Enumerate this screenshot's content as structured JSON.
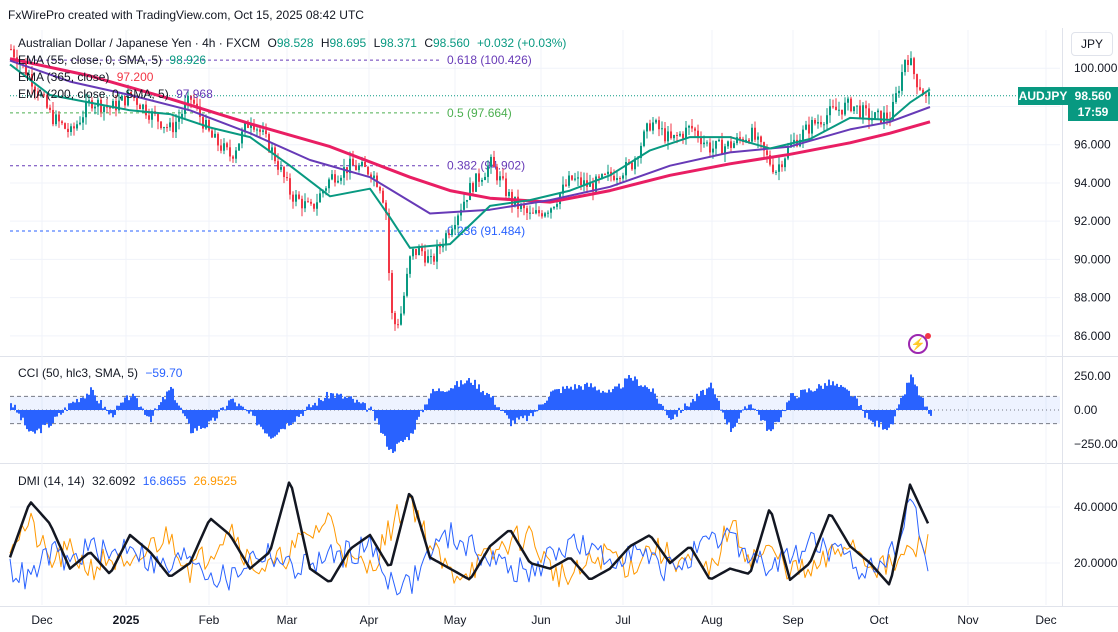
{
  "attribution": "FxWirePro created with TradingView.com, Oct 15, 2025 08:42 UTC",
  "currency": "JPY",
  "symbol_tag": "AUDJPY",
  "last_price": "98.560",
  "countdown": "17:59",
  "colors": {
    "up": "#089981",
    "down": "#f23645",
    "ema55": "#089981",
    "ema365": "#e91e63",
    "ema200": "#673ab7",
    "cci": "#2962ff",
    "adx": "#131722",
    "di_plus": "#2962ff",
    "di_minus": "#ff9800",
    "fib": "#673ab7"
  },
  "legend": {
    "title": "Australian Dollar / Japanese Yen · 4h · FXCM",
    "o_label": "O",
    "o": "98.528",
    "h_label": "H",
    "h": "98.695",
    "l_label": "L",
    "l": "98.371",
    "c_label": "C",
    "c": "98.560",
    "change": "+0.032 (+0.03%)",
    "ema55_label": "EMA (55, close, 0, SMA, 5)",
    "ema55_value": "98.926",
    "ema365_label": "EMA (365, close)",
    "ema365_value": "97.200",
    "ema200_label": "EMA (200, close, 0, SMA, 5)",
    "ema200_value": "97.968",
    "cci_label": "CCI (50, hlc3, SMA, 5)",
    "cci_value": "−59.70",
    "dmi_label": "DMI (14, 14)",
    "dmi_adx": "32.6092",
    "dmi_plus": "16.8655",
    "dmi_minus": "26.9525"
  },
  "chart_data": [
    {
      "type": "line",
      "panel": "price",
      "title": "Australian Dollar / Japanese Yen · 4h · FXCM",
      "x_axis_labels": [
        "Dec",
        "2025",
        "Feb",
        "Mar",
        "Apr",
        "May",
        "Jun",
        "Jul",
        "Aug",
        "Sep",
        "Oct",
        "Nov",
        "Dec"
      ],
      "y_ticks": [
        "100.000",
        "98.000",
        "96.000",
        "94.000",
        "92.000",
        "90.000",
        "88.000",
        "86.000"
      ],
      "ylim": [
        85.0,
        102.0
      ],
      "fib_levels": [
        {
          "label": "0.618 (100.426)",
          "value": 100.426
        },
        {
          "label": "0.5 (97.664)",
          "value": 97.664
        },
        {
          "label": "0.382 (94.902)",
          "value": 94.902
        },
        {
          "label": "0.236 (91.484)",
          "value": 91.484
        }
      ],
      "price_x": [
        0,
        20,
        40,
        60,
        80,
        100,
        120,
        140,
        160,
        180,
        200,
        220,
        240,
        260,
        280,
        300,
        320,
        340,
        360,
        370,
        375,
        380,
        385,
        390,
        395,
        400,
        410,
        420,
        440,
        460,
        480,
        500,
        520,
        540,
        560,
        580,
        600,
        620,
        640,
        660,
        680,
        700,
        720,
        740,
        760,
        765,
        780,
        800,
        820,
        840,
        860,
        880,
        890,
        895,
        900,
        905,
        910,
        915,
        920
      ],
      "price_close": [
        101.0,
        99.5,
        97.5,
        96.6,
        98.3,
        97.9,
        98.6,
        97.6,
        96.8,
        98.4,
        96.4,
        95.4,
        97.4,
        95.8,
        93.4,
        92.6,
        94.3,
        94.9,
        94.6,
        93.8,
        92.5,
        87.2,
        86.5,
        87.2,
        88.7,
        90.3,
        90.5,
        89.8,
        91.8,
        93.8,
        95.0,
        93.1,
        92.2,
        92.8,
        94.2,
        93.8,
        94.4,
        94.9,
        97.2,
        96.2,
        96.9,
        95.8,
        96.0,
        96.6,
        95.0,
        94.7,
        96.0,
        97.0,
        97.7,
        98.1,
        97.4,
        97.5,
        99.5,
        100.8,
        100.2,
        99.4,
        99.0,
        98.4,
        98.56
      ],
      "ema55_x": [
        0,
        40,
        80,
        120,
        160,
        200,
        240,
        280,
        320,
        360,
        380,
        400,
        440,
        480,
        520,
        560,
        600,
        640,
        680,
        720,
        760,
        800,
        840,
        880,
        900,
        920
      ],
      "ema55": [
        100.2,
        98.6,
        98.2,
        97.8,
        97.6,
        96.9,
        96.4,
        94.9,
        93.3,
        93.7,
        92.2,
        90.6,
        90.8,
        92.8,
        93.1,
        93.6,
        94.4,
        95.7,
        96.4,
        96.4,
        95.8,
        96.3,
        97.4,
        97.3,
        98.2,
        98.9
      ],
      "ema200_x": [
        0,
        60,
        120,
        180,
        240,
        300,
        360,
        420,
        480,
        540,
        600,
        660,
        720,
        780,
        840,
        880,
        920
      ],
      "ema200": [
        100.4,
        99.3,
        98.6,
        97.8,
        96.6,
        95.2,
        94.3,
        92.4,
        92.6,
        93.1,
        93.8,
        94.9,
        95.6,
        95.9,
        96.8,
        97.2,
        97.97
      ],
      "ema365_x": [
        0,
        80,
        160,
        240,
        320,
        400,
        440,
        480,
        540,
        600,
        660,
        720,
        780,
        840,
        880,
        920
      ],
      "ema365": [
        100.5,
        99.6,
        98.4,
        97.1,
        95.9,
        94.3,
        93.6,
        93.2,
        93.0,
        93.6,
        94.4,
        95.0,
        95.5,
        96.1,
        96.6,
        97.2
      ]
    },
    {
      "type": "bar",
      "panel": "cci",
      "title": "CCI (50, hlc3, SMA, 5)",
      "y_ticks": [
        "250.00",
        "0.00",
        "−250.00"
      ],
      "ylim": [
        -380,
        380
      ],
      "bands": [
        100,
        -100
      ],
      "x": [
        0,
        20,
        40,
        60,
        80,
        100,
        120,
        140,
        160,
        180,
        200,
        220,
        240,
        260,
        280,
        300,
        320,
        340,
        360,
        380,
        400,
        420,
        440,
        460,
        480,
        500,
        520,
        540,
        560,
        580,
        600,
        620,
        640,
        660,
        680,
        700,
        720,
        740,
        760,
        780,
        800,
        820,
        840,
        860,
        880,
        900,
        920
      ],
      "values": [
        60,
        -180,
        -100,
        50,
        140,
        -40,
        110,
        -60,
        160,
        -150,
        -100,
        80,
        -40,
        -190,
        -80,
        30,
        120,
        80,
        0,
        -300,
        -180,
        130,
        170,
        220,
        100,
        -90,
        -50,
        130,
        170,
        180,
        120,
        240,
        150,
        -60,
        60,
        170,
        -140,
        60,
        -170,
        100,
        150,
        200,
        120,
        -90,
        -130,
        250,
        -60
      ]
    },
    {
      "type": "line",
      "panel": "dmi",
      "title": "DMI (14, 14)",
      "y_ticks": [
        "40.0000",
        "20.0000"
      ],
      "ylim": [
        5,
        55
      ],
      "x": [
        0,
        20,
        40,
        60,
        80,
        100,
        120,
        140,
        160,
        180,
        200,
        220,
        240,
        260,
        280,
        300,
        320,
        340,
        360,
        380,
        400,
        420,
        440,
        460,
        480,
        500,
        520,
        540,
        560,
        580,
        600,
        620,
        640,
        660,
        680,
        700,
        720,
        740,
        760,
        780,
        800,
        820,
        840,
        860,
        880,
        900,
        920
      ],
      "series": [
        {
          "name": "ADX",
          "values": [
            22,
            42,
            34,
            18,
            24,
            16,
            30,
            24,
            15,
            20,
            36,
            30,
            18,
            24,
            50,
            18,
            13,
            25,
            30,
            18,
            46,
            22,
            18,
            14,
            26,
            32,
            20,
            18,
            22,
            14,
            18,
            26,
            30,
            20,
            26,
            14,
            18,
            16,
            40,
            14,
            20,
            38,
            26,
            20,
            12,
            48,
            32.6
          ]
        },
        {
          "name": "+DI",
          "values": [
            18,
            14,
            24,
            20,
            26,
            22,
            28,
            20,
            18,
            24,
            16,
            14,
            22,
            24,
            18,
            20,
            22,
            24,
            26,
            14,
            12,
            24,
            30,
            26,
            22,
            18,
            16,
            22,
            28,
            24,
            20,
            26,
            20,
            18,
            22,
            26,
            30,
            22,
            18,
            22,
            28,
            24,
            20,
            18,
            22,
            44,
            16.9
          ]
        },
        {
          "name": "−DI",
          "values": [
            28,
            34,
            20,
            24,
            18,
            22,
            16,
            26,
            30,
            18,
            24,
            34,
            20,
            18,
            24,
            30,
            36,
            20,
            18,
            32,
            44,
            26,
            16,
            18,
            22,
            28,
            30,
            18,
            14,
            20,
            24,
            18,
            26,
            22,
            20,
            16,
            34,
            22,
            24,
            18,
            16,
            22,
            28,
            20,
            18,
            24,
            27.0
          ]
        }
      ]
    }
  ]
}
